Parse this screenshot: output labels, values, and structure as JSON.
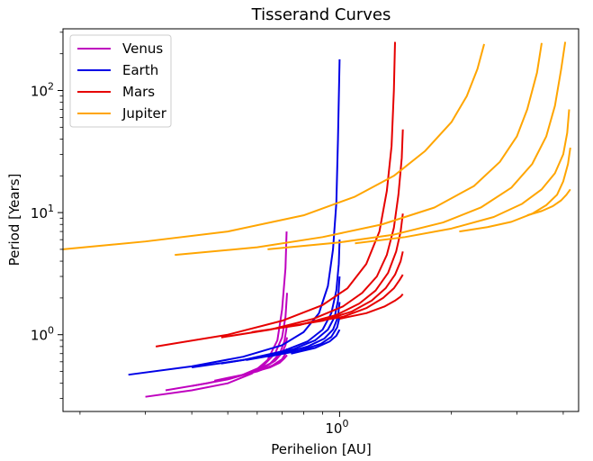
{
  "chart_data": {
    "type": "line",
    "title": "Tisserand Curves",
    "xlabel": "Perihelion [AU]",
    "ylabel": "Period [Years]",
    "xscale": "log",
    "yscale": "log",
    "xlim": [
      0.18,
      4.4
    ],
    "ylim": [
      0.235,
      320
    ],
    "x_ticks": [
      {
        "value": 1.0,
        "label": "10^0"
      }
    ],
    "y_ticks": [
      {
        "value": 1,
        "label": "10^0"
      },
      {
        "value": 10,
        "label": "10^1"
      },
      {
        "value": 100,
        "label": "10^2"
      }
    ],
    "legend": {
      "placement": "top-left"
    },
    "grid": false,
    "series": [
      {
        "name": "Venus",
        "color": "#bf00bf",
        "curves": [
          {
            "x": [
              0.3,
              0.4,
              0.5,
              0.58,
              0.64,
              0.68,
              0.7,
              0.715,
              0.72
            ],
            "y": [
              0.31,
              0.35,
              0.4,
              0.48,
              0.62,
              0.9,
              1.6,
              3.5,
              7.0
            ]
          },
          {
            "x": [
              0.34,
              0.44,
              0.54,
              0.62,
              0.67,
              0.7,
              0.715,
              0.722
            ],
            "y": [
              0.35,
              0.4,
              0.46,
              0.55,
              0.7,
              0.95,
              1.4,
              2.2
            ]
          },
          {
            "x": [
              0.4,
              0.5,
              0.58,
              0.65,
              0.69,
              0.71,
              0.722
            ],
            "y": [
              0.38,
              0.43,
              0.49,
              0.58,
              0.7,
              0.88,
              1.2
            ]
          },
          {
            "x": [
              0.46,
              0.55,
              0.62,
              0.67,
              0.7,
              0.715,
              0.722
            ],
            "y": [
              0.42,
              0.47,
              0.53,
              0.61,
              0.71,
              0.82,
              0.95
            ]
          },
          {
            "x": [
              0.52,
              0.6,
              0.66,
              0.7,
              0.715,
              0.722
            ],
            "y": [
              0.45,
              0.5,
              0.56,
              0.63,
              0.7,
              0.77
            ]
          },
          {
            "x": [
              0.58,
              0.65,
              0.69,
              0.71,
              0.722
            ],
            "y": [
              0.49,
              0.54,
              0.59,
              0.64,
              0.68
            ]
          }
        ]
      },
      {
        "name": "Earth",
        "color": "#0000e6",
        "curves": [
          {
            "x": [
              0.27,
              0.4,
              0.55,
              0.7,
              0.8,
              0.88,
              0.93,
              0.96,
              0.98,
              0.99,
              1.0
            ],
            "y": [
              0.47,
              0.55,
              0.66,
              0.82,
              1.05,
              1.5,
              2.5,
              5.0,
              12,
              40,
              180
            ]
          },
          {
            "x": [
              0.4,
              0.55,
              0.7,
              0.82,
              0.9,
              0.95,
              0.98,
              0.995,
              1.0
            ],
            "y": [
              0.54,
              0.62,
              0.73,
              0.88,
              1.1,
              1.5,
              2.3,
              3.8,
              6.0
            ]
          },
          {
            "x": [
              0.48,
              0.62,
              0.75,
              0.86,
              0.93,
              0.97,
              0.99,
              1.0
            ],
            "y": [
              0.58,
              0.66,
              0.76,
              0.9,
              1.1,
              1.4,
              1.9,
              3.0
            ]
          },
          {
            "x": [
              0.56,
              0.7,
              0.82,
              0.91,
              0.96,
              0.99,
              1.0
            ],
            "y": [
              0.62,
              0.7,
              0.8,
              0.93,
              1.1,
              1.4,
              1.85
            ]
          },
          {
            "x": [
              0.64,
              0.78,
              0.89,
              0.95,
              0.985,
              1.0
            ],
            "y": [
              0.66,
              0.74,
              0.84,
              0.96,
              1.15,
              1.4
            ]
          },
          {
            "x": [
              0.74,
              0.86,
              0.94,
              0.98,
              1.0
            ],
            "y": [
              0.7,
              0.78,
              0.88,
              0.98,
              1.1
            ]
          }
        ]
      },
      {
        "name": "Mars",
        "color": "#e60000",
        "curves": [
          {
            "x": [
              0.32,
              0.5,
              0.7,
              0.9,
              1.05,
              1.18,
              1.28,
              1.34,
              1.38,
              1.4,
              1.41
            ],
            "y": [
              0.8,
              1.0,
              1.3,
              1.75,
              2.4,
              3.8,
              7.0,
              15,
              35,
              100,
              250
            ]
          },
          {
            "x": [
              0.48,
              0.65,
              0.85,
              1.02,
              1.15,
              1.26,
              1.34,
              1.4,
              1.44,
              1.47,
              1.48
            ],
            "y": [
              0.95,
              1.1,
              1.35,
              1.7,
              2.2,
              3.0,
              4.5,
              7.5,
              14,
              28,
              48
            ]
          },
          {
            "x": [
              0.58,
              0.78,
              0.98,
              1.13,
              1.25,
              1.35,
              1.42,
              1.46,
              1.48
            ],
            "y": [
              1.05,
              1.2,
              1.45,
              1.8,
              2.3,
              3.2,
              4.8,
              7.0,
              9.8
            ]
          },
          {
            "x": [
              0.7,
              0.9,
              1.08,
              1.22,
              1.33,
              1.41,
              1.46,
              1.48
            ],
            "y": [
              1.15,
              1.3,
              1.55,
              1.9,
              2.4,
              3.1,
              4.0,
              4.8
            ]
          },
          {
            "x": [
              0.82,
              1.02,
              1.18,
              1.31,
              1.4,
              1.45,
              1.48
            ],
            "y": [
              1.25,
              1.4,
              1.65,
              2.0,
              2.4,
              2.8,
              3.1
            ]
          },
          {
            "x": [
              1.0,
              1.18,
              1.32,
              1.41,
              1.46,
              1.48
            ],
            "y": [
              1.35,
              1.5,
              1.7,
              1.9,
              2.05,
              2.15
            ]
          }
        ]
      },
      {
        "name": "Jupiter",
        "color": "#ffa500",
        "curves": [
          {
            "x": [
              0.18,
              0.3,
              0.5,
              0.8,
              1.1,
              1.4,
              1.7,
              2.0,
              2.2,
              2.35,
              2.45
            ],
            "y": [
              5.0,
              5.8,
              7.0,
              9.5,
              13.5,
              20,
              32,
              55,
              90,
              150,
              240
            ]
          },
          {
            "x": [
              0.36,
              0.6,
              0.9,
              1.3,
              1.8,
              2.3,
              2.7,
              3.0,
              3.2,
              3.4,
              3.5
            ],
            "y": [
              4.5,
              5.2,
              6.3,
              8.0,
              11.0,
              16.5,
              26,
              42,
              70,
              140,
              245
            ]
          },
          {
            "x": [
              0.64,
              1.0,
              1.4,
              1.9,
              2.4,
              2.9,
              3.3,
              3.6,
              3.8,
              3.95,
              4.05
            ],
            "y": [
              5.0,
              5.7,
              6.6,
              8.3,
              11.0,
              16,
              25,
              42,
              75,
              150,
              250
            ]
          },
          {
            "x": [
              1.1,
              1.5,
              2.0,
              2.6,
              3.1,
              3.5,
              3.8,
              4.0,
              4.1,
              4.15
            ],
            "y": [
              5.6,
              6.3,
              7.4,
              9.2,
              11.8,
              15.5,
              21,
              30,
              45,
              70
            ]
          },
          {
            "x": [
              2.1,
              2.5,
              2.9,
              3.3,
              3.6,
              3.85,
              4.0,
              4.12,
              4.18
            ],
            "y": [
              7.0,
              7.6,
              8.4,
              9.8,
              11.5,
              14,
              18,
              25,
              34
            ]
          },
          {
            "x": [
              3.2,
              3.5,
              3.75,
              3.95,
              4.08,
              4.18
            ],
            "y": [
              9.5,
              10.3,
              11.3,
              12.6,
              14.0,
              15.5
            ]
          }
        ]
      }
    ]
  }
}
